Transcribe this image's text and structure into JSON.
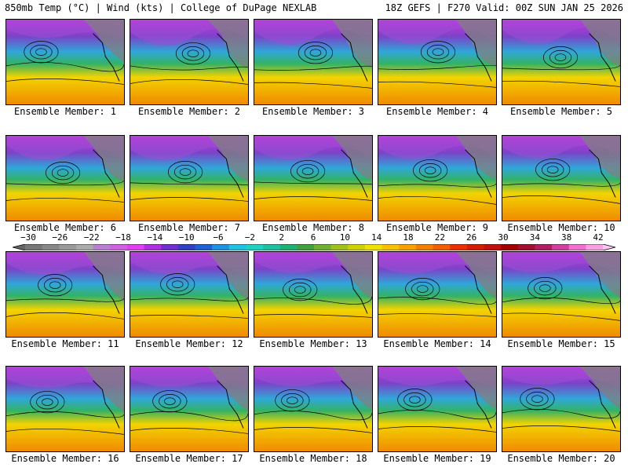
{
  "header": {
    "left": "850mb Temp (°C) | Wind (kts) | College of DuPage NEXLAB",
    "right": "18Z GEFS | F270 Valid: 00Z SUN JAN 25 2026"
  },
  "members": [
    "Ensemble Member: 1",
    "Ensemble Member: 2",
    "Ensemble Member: 3",
    "Ensemble Member: 4",
    "Ensemble Member: 5",
    "Ensemble Member: 6",
    "Ensemble Member: 7",
    "Ensemble Member: 8",
    "Ensemble Member: 9",
    "Ensemble Member: 10",
    "Ensemble Member: 11",
    "Ensemble Member: 12",
    "Ensemble Member: 13",
    "Ensemble Member: 14",
    "Ensemble Member: 15",
    "Ensemble Member: 16",
    "Ensemble Member: 17",
    "Ensemble Member: 18",
    "Ensemble Member: 19",
    "Ensemble Member: 20"
  ],
  "colorbar": {
    "tick_labels": [
      "−30",
      "−26",
      "−22",
      "−18",
      "−14",
      "−10",
      "−6",
      "−2",
      "2",
      "6",
      "10",
      "14",
      "18",
      "22",
      "26",
      "30",
      "34",
      "38",
      "42"
    ],
    "colors": [
      "#666666",
      "#777777",
      "#888888",
      "#999999",
      "#aaaaaa",
      "#b87fd0",
      "#d060e0",
      "#e040f0",
      "#b030e0",
      "#7030d0",
      "#3040c0",
      "#2060d0",
      "#2090e0",
      "#20c0e0",
      "#20d0c0",
      "#20c0a0",
      "#20b070",
      "#40a040",
      "#70b030",
      "#a0c020",
      "#d0d000",
      "#f0e000",
      "#f8c000",
      "#f8a000",
      "#f08000",
      "#f06000",
      "#e83000",
      "#d02000",
      "#c01010",
      "#a00000",
      "#a01030",
      "#b02060",
      "#d040a0",
      "#f070d0",
      "#f8a0e0",
      "#f8c8f0"
    ]
  }
}
